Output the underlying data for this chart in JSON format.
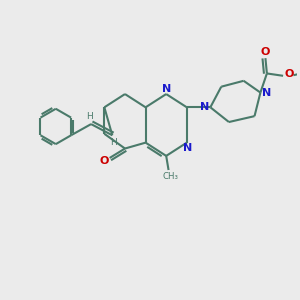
{
  "bg_color": "#ebebeb",
  "bond_color": "#4a7a6a",
  "n_color": "#1a1acc",
  "o_color": "#cc0000",
  "lw": 1.5,
  "figsize": [
    3.0,
    3.0
  ],
  "dpi": 100,
  "xlim": [
    0,
    10
  ],
  "ylim": [
    0,
    10
  ]
}
